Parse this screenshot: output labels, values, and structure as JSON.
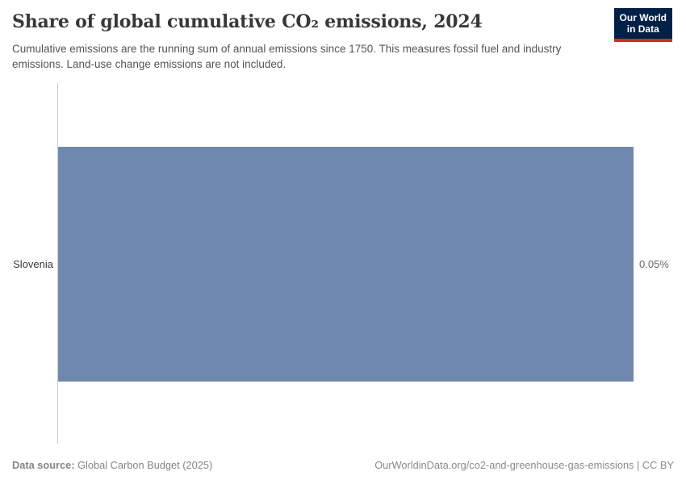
{
  "header": {
    "title": "Share of global cumulative CO₂ emissions, 2024",
    "subtitle": "Cumulative emissions are the running sum of annual emissions since 1750. This measures fossil fuel and industry emissions. Land-use change emissions are not included.",
    "logo": {
      "line1": "Our World",
      "line2": "in Data"
    }
  },
  "chart_data": {
    "type": "bar",
    "orientation": "horizontal",
    "title": "Share of global cumulative CO₂ emissions, 2024",
    "categories": [
      "Slovenia"
    ],
    "values": [
      0.05
    ],
    "value_labels": [
      "0.05%"
    ],
    "unit": "%",
    "xlabel": "",
    "ylabel": "",
    "xlim": [
      0,
      0.05
    ],
    "grid": false,
    "legend": false,
    "bar_color": "#6f88b0"
  },
  "chart": {
    "entity_label": "Slovenia",
    "value_label": "0.05%"
  },
  "footer": {
    "data_source_label": "Data source:",
    "data_source_value": "Global Carbon Budget (2025)",
    "credit": "OurWorldinData.org/co2-and-greenhouse-gas-emissions | CC BY"
  },
  "colors": {
    "bar": "#6f88b0",
    "axis_line": "#cccccc",
    "title_text": "#383838",
    "subtitle_text": "#555555",
    "value_text": "#666666",
    "footer_text": "#858585",
    "logo_background": "#002147",
    "logo_accent": "#cf2d23"
  }
}
